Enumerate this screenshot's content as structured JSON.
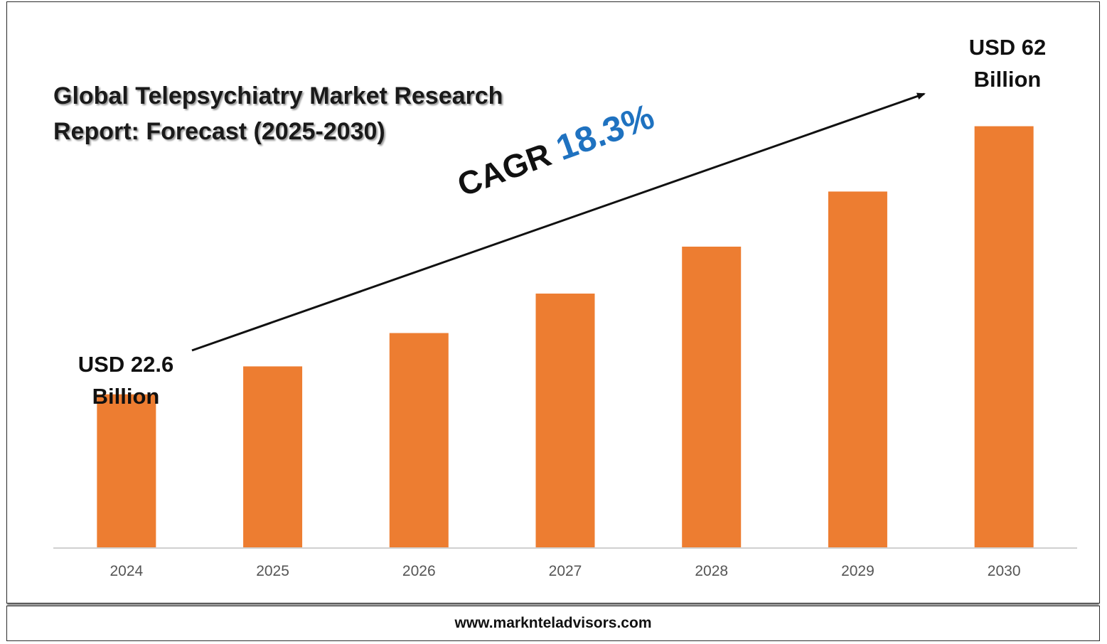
{
  "title": "Global Telepsychiatry Market Research Report: Forecast (2025-2030)",
  "cagr": {
    "label": "CAGR",
    "value": "18.3%"
  },
  "callouts": {
    "start_line1": "USD 22.6",
    "start_line2": "Billion",
    "end_line1": "USD 62",
    "end_line2": "Billion"
  },
  "footer": {
    "url": "www.marknteladvisors.com"
  },
  "colors": {
    "bar": "#ed7d31",
    "cagr_value": "#1f72c0",
    "axis": "#d0d0d0",
    "arrow": "#111111"
  },
  "chart_data": {
    "type": "bar",
    "title": "Global Telepsychiatry Market Research Report: Forecast (2025-2030)",
    "categories": [
      "2024",
      "2025",
      "2026",
      "2027",
      "2028",
      "2029",
      "2030"
    ],
    "values": [
      22.6,
      26.7,
      31.6,
      37.4,
      44.3,
      52.4,
      62.0
    ],
    "unit": "USD Billion",
    "ylim": [
      0,
      70
    ],
    "grid": false,
    "legend": "none"
  }
}
